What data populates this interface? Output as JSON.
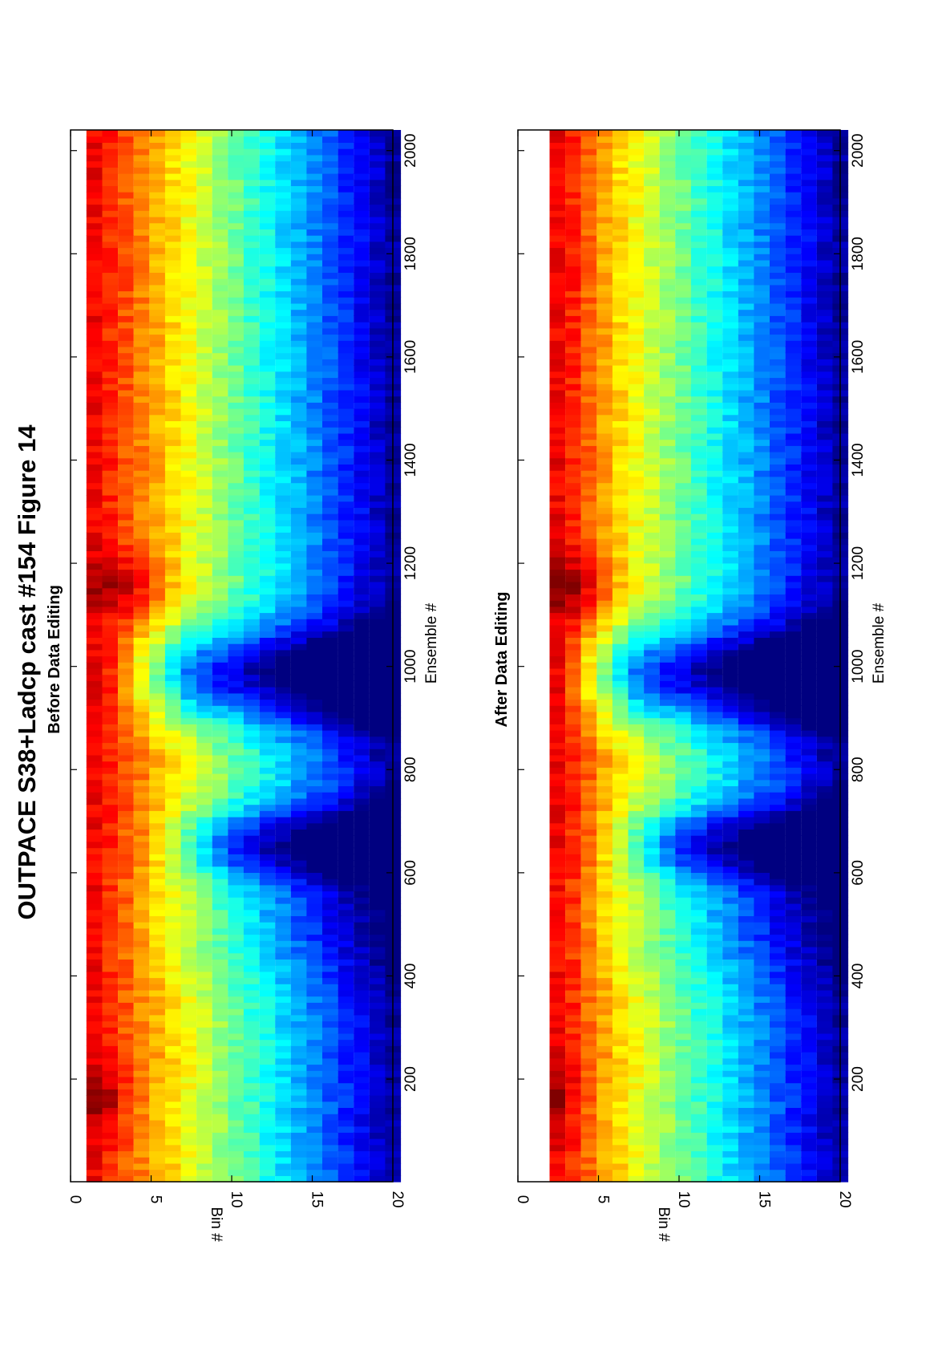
{
  "figure": {
    "title": "OUTPACE S38+Ladcp cast #154  Figure 14"
  },
  "chart_data": [
    {
      "type": "heatmap",
      "title": "Before Data Editing",
      "xlabel": "Ensemble #",
      "ylabel": "Bin #",
      "xlim": [
        1,
        2040
      ],
      "ylim": [
        0,
        20
      ],
      "x_ticks": [
        "200",
        "400",
        "600",
        "800",
        "1000",
        "1200",
        "1400",
        "1600",
        "1800",
        "2000"
      ],
      "y_ticks": [
        "0",
        "5",
        "10",
        "15",
        "20"
      ],
      "y_reversed": true,
      "colormap": "jet",
      "first_bin_missing": false,
      "description_of_values": "echo amplitude; high (red) near bins 1-3 decreasing to low (blue) by bin 20; dips near ensembles 600-700 and 900-1050",
      "bright_regions": [
        {
          "x": [
            120,
            200
          ],
          "bins": [
            1,
            3
          ]
        },
        {
          "x": [
            1100,
            1200
          ],
          "bins": [
            1,
            4
          ]
        }
      ],
      "low_regions": [
        {
          "x": [
            600,
            700
          ],
          "bins": [
            8,
            20
          ]
        },
        {
          "x": [
            900,
            1060
          ],
          "bins": [
            5,
            20
          ]
        }
      ]
    },
    {
      "type": "heatmap",
      "title": "After Data Editing",
      "xlabel": "Ensemble #",
      "ylabel": "Bin #",
      "xlim": [
        1,
        2040
      ],
      "ylim": [
        0,
        20
      ],
      "x_ticks": [
        "200",
        "400",
        "600",
        "800",
        "1000",
        "1200",
        "1400",
        "1600",
        "1800",
        "2000"
      ],
      "y_ticks": [
        "0",
        "5",
        "10",
        "15",
        "20"
      ],
      "y_reversed": true,
      "colormap": "jet",
      "first_bin_missing": true,
      "description_of_values": "same as before, with bin 1 removed (white) and overall stronger reds near bins 2-4"
    }
  ]
}
